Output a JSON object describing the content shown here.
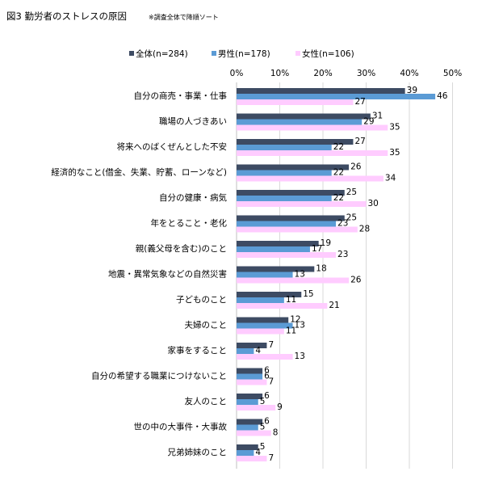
{
  "figure": {
    "title": "図3  勤労者のストレスの原因",
    "note": "※調査全体で降順ソート"
  },
  "chart_data": {
    "type": "bar",
    "orientation": "horizontal",
    "title": "",
    "xlabel": "",
    "ylabel": "",
    "xlim": [
      0,
      50
    ],
    "x_tick_values": [
      0,
      10,
      20,
      30,
      40,
      50
    ],
    "x_tick_labels": [
      "0%",
      "10%",
      "20%",
      "30%",
      "40%",
      "50%"
    ],
    "x_axis_position": "top",
    "grid": "vertical",
    "legend_position": "top",
    "categories": [
      "自分の商売・事業・仕事",
      "職場の人づきあい",
      "将来へのばくぜんとした不安",
      "経済的なこと(借金、失業、貯蓄、ローンなど)",
      "自分の健康・病気",
      "年をとること・老化",
      "親(義父母を含む)のこと",
      "地震・異常気象などの自然災害",
      "子どものこと",
      "夫婦のこと",
      "家事をすること",
      "自分の希望する職業につけないこと",
      "友人のこと",
      "世の中の大事件・大事故",
      "兄弟姉妹のこと"
    ],
    "series": [
      {
        "name": "全体(n=284)",
        "color": "#3d4b63",
        "values": [
          39,
          31,
          27,
          26,
          25,
          25,
          19,
          18,
          15,
          12,
          7,
          6,
          6,
          6,
          5
        ]
      },
      {
        "name": "男性(n=178)",
        "color": "#5b9bd5",
        "values": [
          46,
          29,
          22,
          22,
          22,
          23,
          17,
          13,
          11,
          13,
          4,
          6,
          5,
          5,
          4
        ]
      },
      {
        "name": "女性(n=106)",
        "color": "#ffccff",
        "values": [
          27,
          35,
          35,
          34,
          30,
          28,
          23,
          26,
          21,
          11,
          13,
          7,
          9,
          8,
          7
        ]
      }
    ]
  }
}
